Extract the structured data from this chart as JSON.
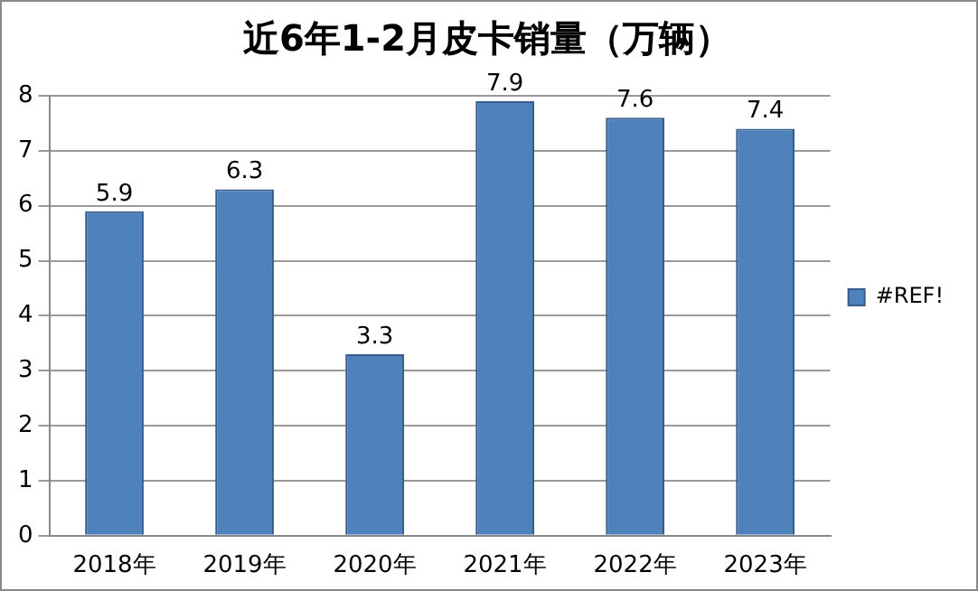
{
  "chart_data": {
    "type": "bar",
    "title": "近6年1-2月皮卡销量（万辆）",
    "categories": [
      "2018年",
      "2019年",
      "2020年",
      "2021年",
      "2022年",
      "2023年"
    ],
    "series": [
      {
        "name": "#REF!",
        "color": "#4f81bd",
        "values": [
          5.9,
          6.3,
          3.3,
          7.9,
          7.6,
          7.4
        ]
      }
    ],
    "ylim": [
      0,
      8
    ],
    "yticks": [
      0,
      1,
      2,
      3,
      4,
      5,
      6,
      7,
      8
    ],
    "grid": "y",
    "legend": "right",
    "data_labels": true
  }
}
